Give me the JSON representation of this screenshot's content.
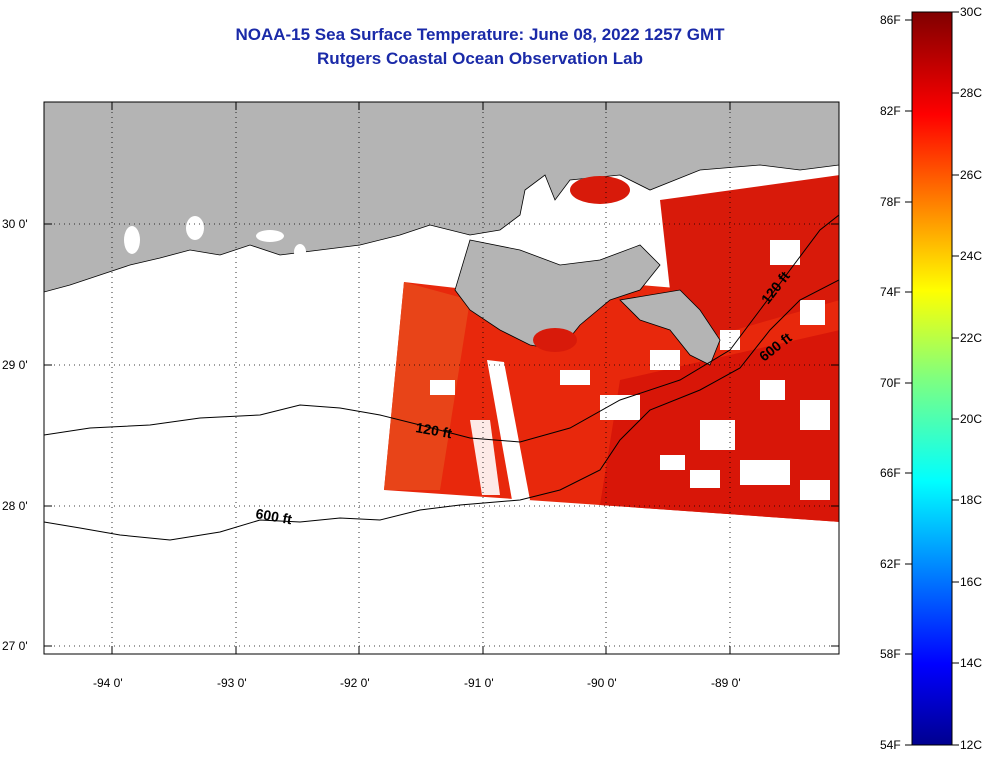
{
  "header": {
    "title": "NOAA-15 Sea Surface Temperature:  June 08, 2022 1257 GMT",
    "subtitle": "Rutgers Coastal Ocean Observation Lab"
  },
  "map": {
    "lat_labels": [
      "30 0'",
      "29 0'",
      "28 0'",
      "27 0'"
    ],
    "lon_labels": [
      "-94 0'",
      "-93 0'",
      "-92 0'",
      "-91 0'",
      "-90 0'",
      "-89 0'"
    ],
    "contours": [
      {
        "label": "120 ft"
      },
      {
        "label": "600 ft"
      }
    ],
    "colors": {
      "land": "#b4b4b4",
      "no_data": "#ffffff",
      "sst_warm": "#e8200a",
      "sst_hot": "#cc0e08",
      "sst_mid": "#f0501a"
    }
  },
  "colorbar": {
    "fahrenheit_labels": [
      "86F",
      "82F",
      "78F",
      "74F",
      "70F",
      "66F",
      "62F",
      "58F",
      "54F"
    ],
    "celsius_labels": [
      "30C",
      "28C",
      "26C",
      "24C",
      "22C",
      "20C",
      "18C",
      "16C",
      "14C",
      "12C"
    ],
    "range_c": [
      12,
      30
    ],
    "range_f": [
      54,
      86
    ]
  }
}
